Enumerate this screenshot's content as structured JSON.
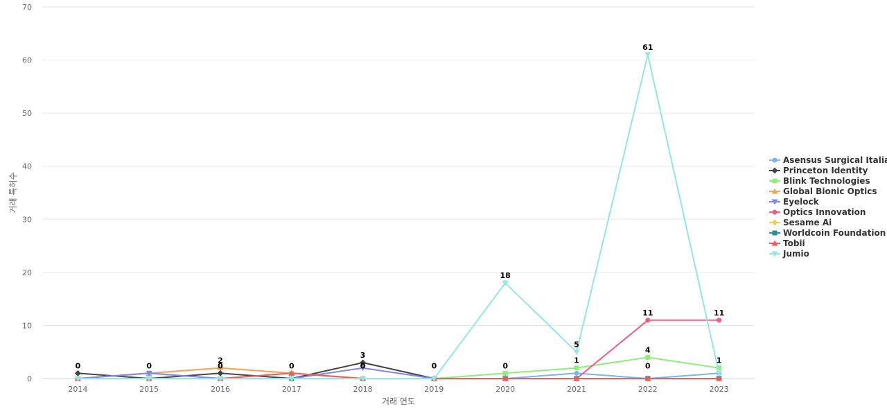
{
  "chart_data": {
    "type": "line",
    "xlabel": "거래 연도",
    "ylabel": "거래 특허수",
    "categories": [
      "2014",
      "2015",
      "2016",
      "2017",
      "2018",
      "2019",
      "2020",
      "2021",
      "2022",
      "2023"
    ],
    "y_ticks": [
      0,
      10,
      20,
      30,
      40,
      50,
      60,
      70
    ],
    "ylim": [
      0,
      70
    ],
    "grid": true,
    "legend_position": "right",
    "series": [
      {
        "name": "Asensus Surgical Italia",
        "color": "#7cb5ec",
        "marker": "circle",
        "values": [
          0,
          1,
          0,
          1,
          0,
          0,
          0,
          1,
          0,
          1
        ]
      },
      {
        "name": "Princeton Identity",
        "color": "#434348",
        "marker": "diamond",
        "values": [
          1,
          0,
          1,
          0,
          3,
          0,
          0,
          0,
          0,
          0
        ]
      },
      {
        "name": "Blink Technologies",
        "color": "#90ed7d",
        "marker": "square",
        "values": [
          0,
          1,
          2,
          1,
          0,
          0,
          1,
          2,
          4,
          2
        ]
      },
      {
        "name": "Global Bionic Optics",
        "color": "#f7a35c",
        "marker": "triangle",
        "values": [
          0,
          1,
          2,
          1,
          0,
          0,
          0,
          0,
          0,
          0
        ]
      },
      {
        "name": "Eyelock",
        "color": "#8085e9",
        "marker": "triangle-down",
        "values": [
          0,
          1,
          0,
          0,
          2,
          0,
          0,
          0,
          0,
          0
        ]
      },
      {
        "name": "Optics Innovation",
        "color": "#f15c80",
        "marker": "circle",
        "values": [
          0,
          0,
          0,
          0,
          0,
          0,
          0,
          0,
          11,
          11
        ]
      },
      {
        "name": "Sesame Ai",
        "color": "#e4d354",
        "marker": "diamond",
        "values": [
          0,
          0,
          0,
          0,
          0,
          0,
          0,
          0,
          0,
          0
        ]
      },
      {
        "name": "Worldcoin Foundation",
        "color": "#2b908f",
        "marker": "square",
        "values": [
          0,
          0,
          0,
          0,
          0,
          0,
          0,
          0,
          0,
          0
        ]
      },
      {
        "name": "Tobii",
        "color": "#f45b5b",
        "marker": "triangle",
        "values": [
          0,
          0,
          0,
          1,
          0,
          0,
          0,
          0,
          0,
          0
        ]
      },
      {
        "name": "Jumio",
        "color": "#91e8e1",
        "marker": "triangle-down",
        "values": [
          0,
          0,
          0,
          0,
          0,
          0,
          18,
          5,
          61,
          1
        ]
      }
    ],
    "annotations": [
      {
        "text": "0",
        "x": "2014",
        "y": 1
      },
      {
        "text": "0",
        "x": "2015",
        "y": 1
      },
      {
        "text": "0",
        "x": "2016",
        "y": 1
      },
      {
        "text": "2",
        "x": "2016",
        "y": 2
      },
      {
        "text": "0",
        "x": "2017",
        "y": 1
      },
      {
        "text": "3",
        "x": "2018",
        "y": 3
      },
      {
        "text": "0",
        "x": "2018",
        "y": 1
      },
      {
        "text": "0",
        "x": "2019",
        "y": 1
      },
      {
        "text": "18",
        "x": "2020",
        "y": 18
      },
      {
        "text": "0",
        "x": "2020",
        "y": 1
      },
      {
        "text": "5",
        "x": "2021",
        "y": 5
      },
      {
        "text": "1",
        "x": "2021",
        "y": 2
      },
      {
        "text": "61",
        "x": "2022",
        "y": 61
      },
      {
        "text": "11",
        "x": "2022",
        "y": 11
      },
      {
        "text": "4",
        "x": "2022",
        "y": 4
      },
      {
        "text": "0",
        "x": "2022",
        "y": 1
      },
      {
        "text": "11",
        "x": "2023",
        "y": 11
      },
      {
        "text": "1",
        "x": "2023",
        "y": 2
      }
    ]
  }
}
